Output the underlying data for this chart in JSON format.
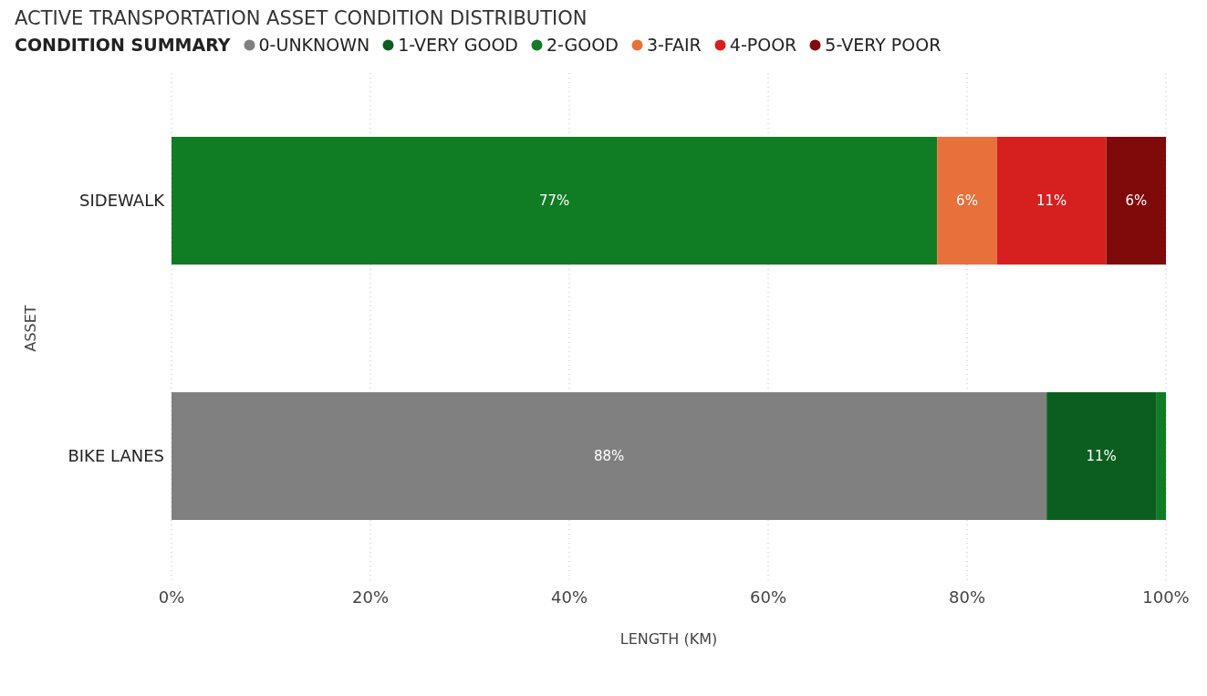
{
  "chart_data": {
    "type": "bar",
    "orientation": "horizontal",
    "stacked": true,
    "title": "ACTIVE TRANSPORTATION ASSET CONDITION DISTRIBUTION",
    "xlabel": "LENGTH (KM)",
    "ylabel": "ASSET",
    "legend_title": "CONDITION SUMMARY",
    "legend": "top left",
    "grid": "x",
    "categories": [
      "SIDEWALK",
      "BIKE LANES"
    ],
    "xlim": [
      0,
      100
    ],
    "xticks": [
      {
        "value": 0,
        "label": "0%"
      },
      {
        "value": 20,
        "label": "20%"
      },
      {
        "value": 40,
        "label": "40%"
      },
      {
        "value": 60,
        "label": "60%"
      },
      {
        "value": 80,
        "label": "80%"
      },
      {
        "value": 100,
        "label": "100%"
      }
    ],
    "series": [
      {
        "name": "0-UNKNOWN",
        "color": "#808080",
        "values": [
          null,
          88
        ],
        "value_labels": [
          null,
          "88%"
        ]
      },
      {
        "name": "1-VERY GOOD",
        "color": "#0b5e1f",
        "values": [
          null,
          11
        ],
        "value_labels": [
          null,
          "11%"
        ]
      },
      {
        "name": "2-GOOD",
        "color": "#107c23",
        "values": [
          77,
          1
        ],
        "value_labels": [
          "77%",
          null
        ]
      },
      {
        "name": "3-FAIR",
        "color": "#e8703a",
        "values": [
          6,
          null
        ],
        "value_labels": [
          "6%",
          null
        ]
      },
      {
        "name": "4-POOR",
        "color": "#d61f1f",
        "values": [
          11,
          null
        ],
        "value_labels": [
          "11%",
          null
        ]
      },
      {
        "name": "5-VERY POOR",
        "color": "#7f0a0a",
        "values": [
          6,
          null
        ],
        "value_labels": [
          "6%",
          null
        ]
      }
    ]
  }
}
